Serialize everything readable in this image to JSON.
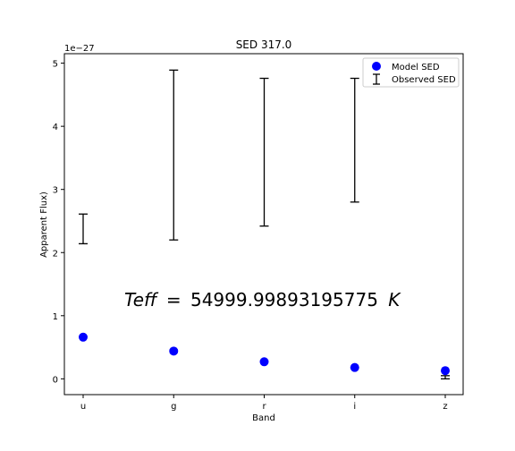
{
  "chart_data": {
    "type": "scatter",
    "title": "SED 317.0",
    "xlabel": "Band",
    "ylabel": "Apparent Flux)",
    "categories": [
      "u",
      "g",
      "r",
      "i",
      "z"
    ],
    "y_scale_label": "1e−27",
    "ylim": [
      -0.25,
      5.15
    ],
    "yticks": [
      0,
      1,
      2,
      3,
      4,
      5
    ],
    "ytick_labels": [
      "0",
      "1",
      "2",
      "3",
      "4",
      "5"
    ],
    "legend_position": "upper-right",
    "annotation_parts": {
      "lhs": "Teff",
      "eq": "=",
      "value": "54999.99893195775",
      "unit": "K"
    },
    "series": [
      {
        "name": "Model SED",
        "kind": "points",
        "color": "#0000ff",
        "values": [
          0.66,
          0.44,
          0.27,
          0.18,
          0.13
        ]
      },
      {
        "name": "Observed SED",
        "kind": "errorbar",
        "color": "#000000",
        "low": [
          2.14,
          2.2,
          2.42,
          2.8,
          0.0
        ],
        "high": [
          2.61,
          4.89,
          4.76,
          4.76,
          0.05
        ]
      }
    ]
  }
}
